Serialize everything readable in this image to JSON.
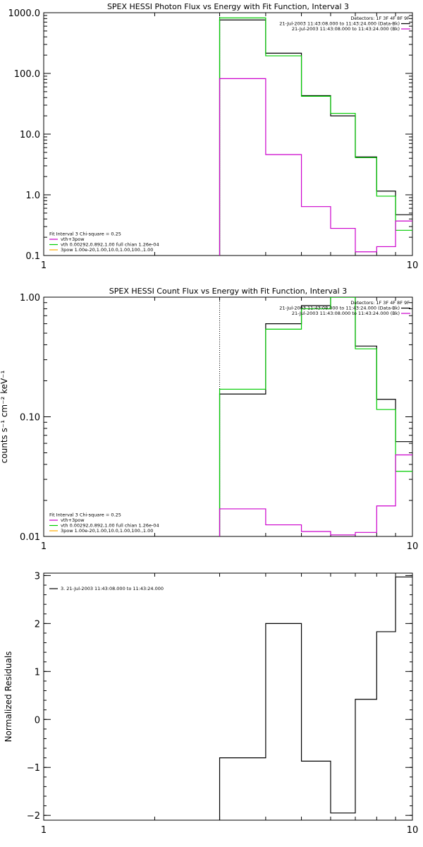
{
  "chart_data": [
    {
      "type": "line",
      "title": "SPEX HESSI Photon Flux vs Energy with Fit Function, Interval 3",
      "ylabel": "",
      "xscale": "log",
      "yscale": "log",
      "xlim": [
        1,
        10
      ],
      "ylim": [
        0.1,
        1000
      ],
      "xticks": [
        {
          "v": 1,
          "label": "1"
        },
        {
          "v": 10,
          "label": "10"
        }
      ],
      "yticks": [
        {
          "v": 0.1,
          "label": "0.1"
        },
        {
          "v": 1,
          "label": "1.0"
        },
        {
          "v": 10,
          "label": "10.0"
        },
        {
          "v": 100,
          "label": "100.0"
        },
        {
          "v": 1000,
          "label": "1000.0"
        }
      ],
      "vline_x": 3.0,
      "legend_right": {
        "placement": "top-right",
        "lines": [
          {
            "text": "Detectors: 1F 3F 4F 8F 9F",
            "color": ""
          },
          {
            "text": "21-Jul-2003 11:43:08.000 to 11:43:24.000 (Data-Bk)",
            "color": "#000000"
          },
          {
            "text": "21-Jul-2003 11:43:08.000 to 11:43:24.000 (Bk)",
            "color": "#cc00cc"
          }
        ]
      },
      "legend_left": {
        "placement": "bottom-left",
        "lines": [
          {
            "text": "Fit Interval 3   Chi-square = 0.25",
            "color": ""
          },
          {
            "text": "vth+3pow",
            "color": "#cc00cc"
          },
          {
            "text": "vth 0.00292,0.892,1.00   full chian 1.26e-04",
            "color": "#00cc00"
          },
          {
            "text": "3pow 1.00e-20,1.00,10.0,1.00,100.,1.00",
            "color": "#ffaa00"
          }
        ]
      },
      "edges": [
        3.0,
        4.0,
        5.0,
        6.0,
        7.0,
        8.0,
        9.0,
        10.0
      ],
      "series": [
        {
          "name": "Data-Bk",
          "color": "#000000",
          "values": [
            760,
            215,
            43,
            20,
            4.2,
            1.15,
            0.47
          ]
        },
        {
          "name": "fit",
          "color": "#00cc00",
          "values": [
            820,
            195,
            42,
            22,
            4.1,
            0.95,
            0.26
          ]
        },
        {
          "name": "Bk",
          "color": "#cc00cc",
          "values": [
            82,
            4.6,
            0.64,
            0.28,
            0.115,
            0.14,
            0.37
          ]
        }
      ]
    },
    {
      "type": "line",
      "title": "SPEX HESSI Count Flux vs Energy with Fit Function, Interval 3",
      "ylabel": "counts s⁻¹ cm⁻² keV⁻¹",
      "xscale": "log",
      "yscale": "log",
      "xlim": [
        1,
        10
      ],
      "ylim": [
        0.01,
        1.0
      ],
      "xticks": [
        {
          "v": 1,
          "label": "1"
        },
        {
          "v": 10,
          "label": "10"
        }
      ],
      "yticks": [
        {
          "v": 0.01,
          "label": "0.01"
        },
        {
          "v": 0.1,
          "label": "0.10"
        },
        {
          "v": 1,
          "label": "1.00"
        }
      ],
      "vline_x": 3.0,
      "legend_right": {
        "placement": "top-right",
        "lines": [
          {
            "text": "Detectors: 1F 3F 4F 8F 9F",
            "color": ""
          },
          {
            "text": "21-Jul-2003 11:43:08.000 to 11:43:24.000 (Data-Bk)",
            "color": "#000000"
          },
          {
            "text": "21-Jul-2003 11:43:08.000 to 11:43:24.000 (Bk)",
            "color": "#cc00cc"
          }
        ]
      },
      "legend_left": {
        "placement": "bottom-left",
        "lines": [
          {
            "text": "Fit Interval 3   Chi-square = 0.25",
            "color": ""
          },
          {
            "text": "vth+3pow",
            "color": "#cc00cc"
          },
          {
            "text": "vth 0.00292,0.892,1.00   full chian 1.26e-04",
            "color": "#00cc00"
          },
          {
            "text": "3pow 1.00e-20,1.00,10.0,1.00,100.,1.00",
            "color": "#ffaa00"
          }
        ]
      },
      "edges": [
        3.0,
        4.0,
        5.0,
        6.0,
        7.0,
        8.0,
        9.0,
        10.0
      ],
      "series": [
        {
          "name": "Data-Bk",
          "color": "#000000",
          "values": [
            0.155,
            0.6,
            0.85,
            1.05,
            0.39,
            0.14,
            0.062
          ]
        },
        {
          "name": "fit",
          "color": "#00cc00",
          "values": [
            0.17,
            0.54,
            0.8,
            1.1,
            0.37,
            0.115,
            0.035
          ]
        },
        {
          "name": "Bk",
          "color": "#cc00cc",
          "values": [
            0.017,
            0.0125,
            0.011,
            0.0103,
            0.0108,
            0.018,
            0.048
          ]
        }
      ]
    },
    {
      "type": "line",
      "title": "",
      "ylabel": "Normalized Residuals",
      "xscale": "log",
      "yscale": "linear",
      "xlim": [
        1,
        10
      ],
      "ylim": [
        -2.1,
        3.05
      ],
      "xticks": [
        {
          "v": 1,
          "label": "1"
        },
        {
          "v": 10,
          "label": "10"
        }
      ],
      "yticks": [
        {
          "v": -2,
          "label": "−2"
        },
        {
          "v": -1,
          "label": "−1"
        },
        {
          "v": 0,
          "label": "0"
        },
        {
          "v": 1,
          "label": "1"
        },
        {
          "v": 2,
          "label": "2"
        },
        {
          "v": 3,
          "label": "3"
        }
      ],
      "legend_left": {
        "placement": "top-left",
        "lines": [
          {
            "text": "3. 21-Jul-2003 11:43:08.000 to 11:43:24.000",
            "color": "#000000"
          }
        ]
      },
      "edges": [
        3.0,
        4.0,
        5.0,
        6.0,
        7.0,
        8.0,
        9.0,
        10.0
      ],
      "series": [
        {
          "name": "residuals",
          "color": "#000000",
          "values": [
            -0.8,
            2.0,
            -0.87,
            -1.95,
            0.42,
            1.83,
            2.97
          ]
        }
      ]
    }
  ]
}
